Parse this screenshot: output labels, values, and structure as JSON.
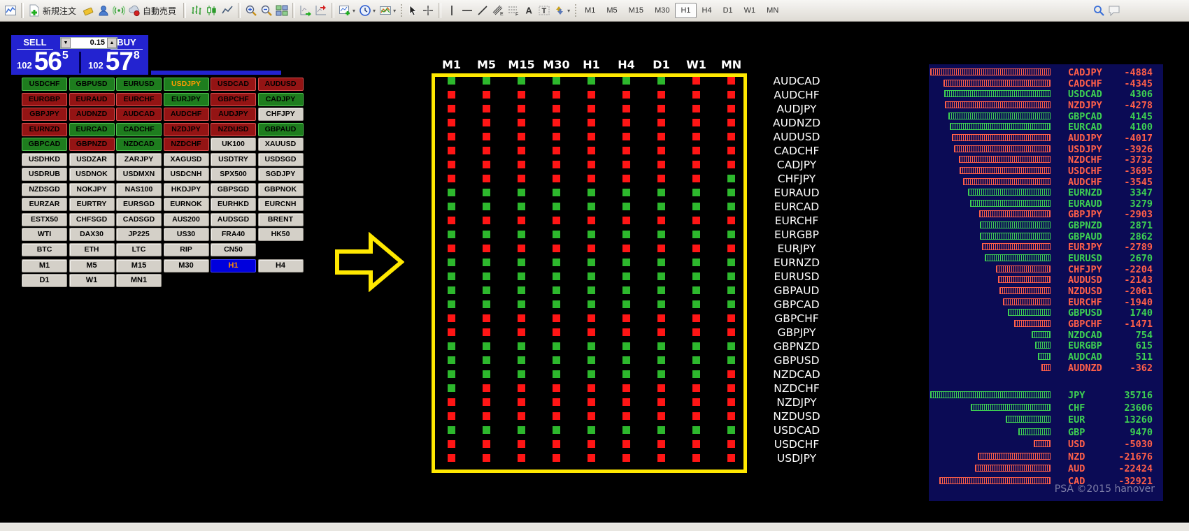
{
  "toolbar": {
    "new_order_label": "新規注文",
    "auto_trading_label": "自動売買",
    "timeframes": [
      "M1",
      "M5",
      "M15",
      "M30",
      "H1",
      "H4",
      "D1",
      "W1",
      "MN"
    ],
    "active_timeframe": "H1",
    "icons": [
      "chart-window",
      "new-order",
      "eraser",
      "community",
      "signals",
      "auto-trading",
      "bars-chart",
      "candles-chart",
      "line-chart",
      "zoom-in",
      "zoom-out",
      "tile-windows",
      "auto-scroll",
      "chart-shift",
      "new-chart",
      "periods",
      "templates",
      "cursor",
      "crosshair",
      "vertical-line",
      "horizontal-line",
      "trend-line",
      "equidistant-channel",
      "fibonacci",
      "text",
      "text-label",
      "arrows",
      "search",
      "chat"
    ]
  },
  "quote_panel": {
    "sell_label": "SELL",
    "buy_label": "BUY",
    "lot_size": "0.15",
    "bid": {
      "prefix": "102",
      "main": "56",
      "pips": "5"
    },
    "ask": {
      "prefix": "102",
      "main": "57",
      "pips": "8"
    }
  },
  "symbol_grid": {
    "rows": [
      [
        {
          "label": "USDCHF",
          "state": "g"
        },
        {
          "label": "GBPUSD",
          "state": "g"
        },
        {
          "label": "EURUSD",
          "state": "g"
        },
        {
          "label": "USDJPY",
          "state": "sel"
        },
        {
          "label": "USDCAD",
          "state": "r"
        },
        {
          "label": "AUDUSD",
          "state": "r"
        }
      ],
      [
        {
          "label": "EURGBP",
          "state": "r"
        },
        {
          "label": "EURAUD",
          "state": "r"
        },
        {
          "label": "EURCHF",
          "state": "r"
        },
        {
          "label": "EURJPY",
          "state": "g"
        },
        {
          "label": "GBPCHF",
          "state": "r"
        },
        {
          "label": "CADJPY",
          "state": "g"
        }
      ],
      [
        {
          "label": "GBPJPY",
          "state": "r"
        },
        {
          "label": "AUDNZD",
          "state": "r"
        },
        {
          "label": "AUDCAD",
          "state": "r"
        },
        {
          "label": "AUDCHF",
          "state": "r"
        },
        {
          "label": "AUDJPY",
          "state": "r"
        },
        {
          "label": "CHFJPY",
          "state": "n"
        }
      ],
      [
        {
          "label": "EURNZD",
          "state": "r"
        },
        {
          "label": "EURCAD",
          "state": "g"
        },
        {
          "label": "CADCHF",
          "state": "g"
        },
        {
          "label": "NZDJPY",
          "state": "r"
        },
        {
          "label": "NZDUSD",
          "state": "r"
        },
        {
          "label": "GBPAUD",
          "state": "g"
        }
      ],
      [
        {
          "label": "GBPCAD",
          "state": "g"
        },
        {
          "label": "GBPNZD",
          "state": "r"
        },
        {
          "label": "NZDCAD",
          "state": "g"
        },
        {
          "label": "NZDCHF",
          "state": "r"
        },
        {
          "label": "UK100",
          "state": "n"
        },
        {
          "label": "XAUUSD",
          "state": "n"
        }
      ],
      [
        {
          "label": "USDHKD",
          "state": "n"
        },
        {
          "label": "USDZAR",
          "state": "n"
        },
        {
          "label": "ZARJPY",
          "state": "n"
        },
        {
          "label": "XAGUSD",
          "state": "n"
        },
        {
          "label": "USDTRY",
          "state": "n"
        },
        {
          "label": "USDSGD",
          "state": "n"
        }
      ],
      [
        {
          "label": "USDRUB",
          "state": "n"
        },
        {
          "label": "USDNOK",
          "state": "n"
        },
        {
          "label": "USDMXN",
          "state": "n"
        },
        {
          "label": "USDCNH",
          "state": "n"
        },
        {
          "label": "SPX500",
          "state": "n"
        },
        {
          "label": "SGDJPY",
          "state": "n"
        }
      ],
      [
        {
          "label": "NZDSGD",
          "state": "n"
        },
        {
          "label": "NOKJPY",
          "state": "n"
        },
        {
          "label": "NAS100",
          "state": "n"
        },
        {
          "label": "HKDJPY",
          "state": "n"
        },
        {
          "label": "GBPSGD",
          "state": "n"
        },
        {
          "label": "GBPNOK",
          "state": "n"
        }
      ],
      [
        {
          "label": "EURZAR",
          "state": "n"
        },
        {
          "label": "EURTRY",
          "state": "n"
        },
        {
          "label": "EURSGD",
          "state": "n"
        },
        {
          "label": "EURNOK",
          "state": "n"
        },
        {
          "label": "EURHKD",
          "state": "n"
        },
        {
          "label": "EURCNH",
          "state": "n"
        }
      ],
      [
        {
          "label": "ESTX50",
          "state": "n"
        },
        {
          "label": "CHFSGD",
          "state": "n"
        },
        {
          "label": "CADSGD",
          "state": "n"
        },
        {
          "label": "AUS200",
          "state": "n"
        },
        {
          "label": "AUDSGD",
          "state": "n"
        },
        {
          "label": "BRENT",
          "state": "n"
        }
      ],
      [
        {
          "label": "WTI",
          "state": "n"
        },
        {
          "label": "DAX30",
          "state": "n"
        },
        {
          "label": "JP225",
          "state": "n"
        },
        {
          "label": "US30",
          "state": "n"
        },
        {
          "label": "FRA40",
          "state": "n"
        },
        {
          "label": "HK50",
          "state": "n"
        }
      ],
      [
        {
          "label": "BTC",
          "state": "n"
        },
        {
          "label": "ETH",
          "state": "n"
        },
        {
          "label": "LTC",
          "state": "n"
        },
        {
          "label": "RIP",
          "state": "n"
        },
        {
          "label": "CN50",
          "state": "n"
        },
        null
      ]
    ]
  },
  "panel_timeframes": {
    "row1": [
      "M1",
      "M5",
      "M15",
      "M30",
      "H1",
      "H4"
    ],
    "row2": [
      "D1",
      "W1",
      "MN1"
    ],
    "active": "H1"
  },
  "matrix": {
    "columns": [
      "M1",
      "M5",
      "M15",
      "M30",
      "H1",
      "H4",
      "D1",
      "W1",
      "MN"
    ],
    "rows": [
      {
        "pair": "AUDCAD",
        "cells": "GGGGGGGRR"
      },
      {
        "pair": "AUDCHF",
        "cells": "RRRRRRRRR"
      },
      {
        "pair": "AUDJPY",
        "cells": "RRRRRRRRR"
      },
      {
        "pair": "AUDNZD",
        "cells": "RRRRRRRRR"
      },
      {
        "pair": "AUDUSD",
        "cells": "RRRRRRRRR"
      },
      {
        "pair": "CADCHF",
        "cells": "RRRRRRRRR"
      },
      {
        "pair": "CADJPY",
        "cells": "RRRRRRRRR"
      },
      {
        "pair": "CHFJPY",
        "cells": "RRRRRRRRG"
      },
      {
        "pair": "EURAUD",
        "cells": "GGGGGGGGG"
      },
      {
        "pair": "EURCAD",
        "cells": "GGGGGGGGG"
      },
      {
        "pair": "EURCHF",
        "cells": "RRRRRRRRR"
      },
      {
        "pair": "EURGBP",
        "cells": "GGGGGGGGG"
      },
      {
        "pair": "EURJPY",
        "cells": "RRRRRRRRR"
      },
      {
        "pair": "EURNZD",
        "cells": "GGGGGGGGG"
      },
      {
        "pair": "EURUSD",
        "cells": "GGGGGGGGG"
      },
      {
        "pair": "GBPAUD",
        "cells": "GGGGGGGGG"
      },
      {
        "pair": "GBPCAD",
        "cells": "GGGGGGGGG"
      },
      {
        "pair": "GBPCHF",
        "cells": "RRRRRRRRR"
      },
      {
        "pair": "GBPJPY",
        "cells": "RRRRRRRRR"
      },
      {
        "pair": "GBPNZD",
        "cells": "GGGGGGGGG"
      },
      {
        "pair": "GBPUSD",
        "cells": "GGGGGGGGG"
      },
      {
        "pair": "NZDCAD",
        "cells": "GGGGGGGGR"
      },
      {
        "pair": "NZDCHF",
        "cells": "GRRRRRRRR"
      },
      {
        "pair": "NZDJPY",
        "cells": "RRRRRRRRR"
      },
      {
        "pair": "NZDUSD",
        "cells": "RRRRRRRRR"
      },
      {
        "pair": "USDCAD",
        "cells": "GGGGGGGGG"
      },
      {
        "pair": "USDCHF",
        "cells": "RRRRRRRRR"
      },
      {
        "pair": "USDJPY",
        "cells": "RRRRRRRRR"
      }
    ]
  },
  "strength_panel": {
    "pairs": [
      {
        "name": "CADJPY",
        "value": -4884
      },
      {
        "name": "CADCHF",
        "value": -4345
      },
      {
        "name": "USDCAD",
        "value": 4306
      },
      {
        "name": "NZDJPY",
        "value": -4278
      },
      {
        "name": "GBPCAD",
        "value": 4145
      },
      {
        "name": "EURCAD",
        "value": 4100
      },
      {
        "name": "AUDJPY",
        "value": -4017
      },
      {
        "name": "USDJPY",
        "value": -3926
      },
      {
        "name": "NZDCHF",
        "value": -3732
      },
      {
        "name": "USDCHF",
        "value": -3695
      },
      {
        "name": "AUDCHF",
        "value": -3545
      },
      {
        "name": "EURNZD",
        "value": 3347
      },
      {
        "name": "EURAUD",
        "value": 3279
      },
      {
        "name": "GBPJPY",
        "value": -2903
      },
      {
        "name": "GBPNZD",
        "value": 2871
      },
      {
        "name": "GBPAUD",
        "value": 2862
      },
      {
        "name": "EURJPY",
        "value": -2789
      },
      {
        "name": "EURUSD",
        "value": 2670
      },
      {
        "name": "CHFJPY",
        "value": -2204
      },
      {
        "name": "AUDUSD",
        "value": -2143
      },
      {
        "name": "NZDUSD",
        "value": -2061
      },
      {
        "name": "EURCHF",
        "value": -1940
      },
      {
        "name": "GBPUSD",
        "value": 1740
      },
      {
        "name": "GBPCHF",
        "value": -1471
      },
      {
        "name": "NZDCAD",
        "value": 754
      },
      {
        "name": "EURGBP",
        "value": 615
      },
      {
        "name": "AUDCAD",
        "value": 511
      },
      {
        "name": "AUDNZD",
        "value": -362
      }
    ],
    "currencies": [
      {
        "name": "JPY",
        "value": 35716
      },
      {
        "name": "CHF",
        "value": 23606
      },
      {
        "name": "EUR",
        "value": 13260
      },
      {
        "name": "GBP",
        "value": 9470
      },
      {
        "name": "USD",
        "value": -5030
      },
      {
        "name": "NZD",
        "value": -21676
      },
      {
        "name": "AUD",
        "value": -22424
      },
      {
        "name": "CAD",
        "value": -32921
      }
    ],
    "credit": "PSA ©2015 hanover"
  },
  "colors": {
    "panel_blue": "#2323d0",
    "button_green": "#1e7d1e",
    "button_red": "#941414",
    "button_neutral": "#d4d0c8",
    "selected_symbol_text": "#ff9c00",
    "tf_active_bg": "#0000dd",
    "tf_active_text": "#ff8c00",
    "matrix_green": "#2db82d",
    "matrix_red": "#ff1515",
    "matrix_border": "#ffe800",
    "strength_bg": "#0b0b55",
    "strength_red": "#ff5f49",
    "strength_green": "#3ed152"
  }
}
